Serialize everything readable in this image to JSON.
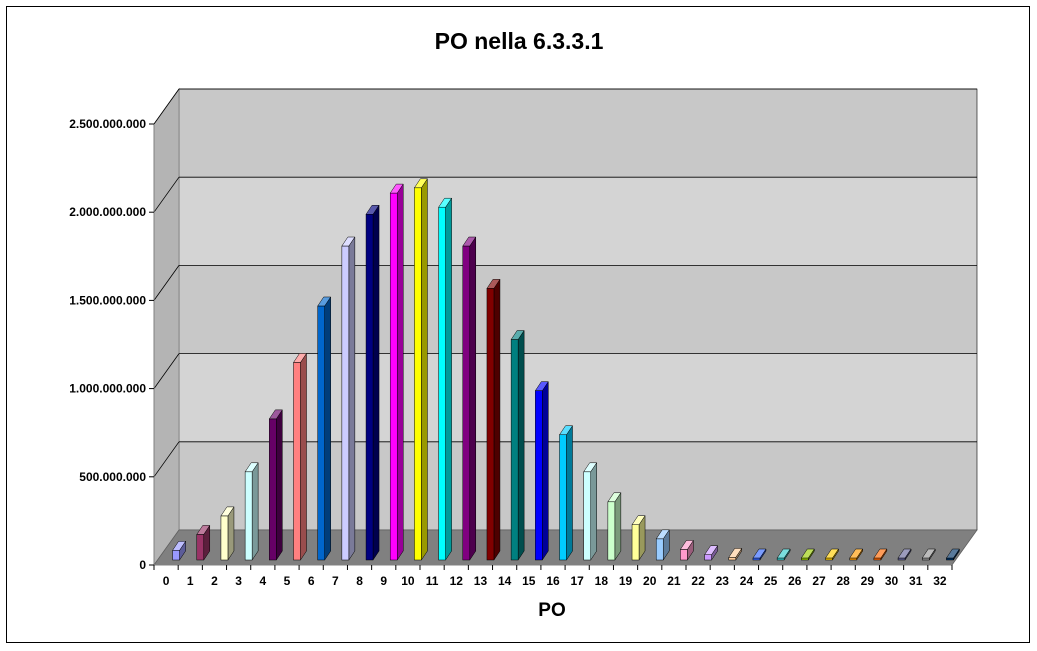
{
  "chart_data": {
    "type": "bar",
    "style": "3d-column",
    "title": "PO nella 6.3.3.1",
    "xlabel": "PO",
    "ylabel": "",
    "ylim": [
      0,
      2500000000
    ],
    "y_ticks": [
      "0",
      "500.000.000",
      "1.000.000.000",
      "1.500.000.000",
      "2.000.000.000",
      "2.500.000.000"
    ],
    "y_tick_values": [
      0,
      500000000,
      1000000000,
      1500000000,
      2000000000,
      2500000000
    ],
    "grid": true,
    "legend": "none",
    "categories": [
      "0",
      "1",
      "2",
      "3",
      "4",
      "5",
      "6",
      "7",
      "8",
      "9",
      "10",
      "11",
      "12",
      "13",
      "14",
      "15",
      "16",
      "17",
      "18",
      "19",
      "20",
      "21",
      "22",
      "23",
      "24",
      "25",
      "26",
      "27",
      "28",
      "29",
      "30",
      "31",
      "32"
    ],
    "values": [
      55000000,
      145000000,
      250000000,
      500000000,
      800000000,
      1120000000,
      1440000000,
      1780000000,
      1960000000,
      2080000000,
      2110000000,
      2000000000,
      1780000000,
      1540000000,
      1250000000,
      960000000,
      710000000,
      500000000,
      330000000,
      200000000,
      120000000,
      60000000,
      30000000,
      15000000,
      10000000,
      6000000,
      4000000,
      3000000,
      2000000,
      1000000,
      1000000,
      1000000,
      1000000
    ],
    "colors": [
      "#9999ff",
      "#993366",
      "#ffffcc",
      "#ccffff",
      "#660066",
      "#ff8080",
      "#0066cc",
      "#ccccff",
      "#000080",
      "#ff00ff",
      "#ffff00",
      "#00ffff",
      "#800080",
      "#800000",
      "#008080",
      "#0000ff",
      "#00ccff",
      "#ccffff",
      "#ccffcc",
      "#ffff99",
      "#99ccff",
      "#ff99cc",
      "#cc99ff",
      "#ffcc99",
      "#3366ff",
      "#33cccc",
      "#99cc00",
      "#ffcc00",
      "#ff9900",
      "#ff6600",
      "#666699",
      "#969696",
      "#003366"
    ]
  }
}
